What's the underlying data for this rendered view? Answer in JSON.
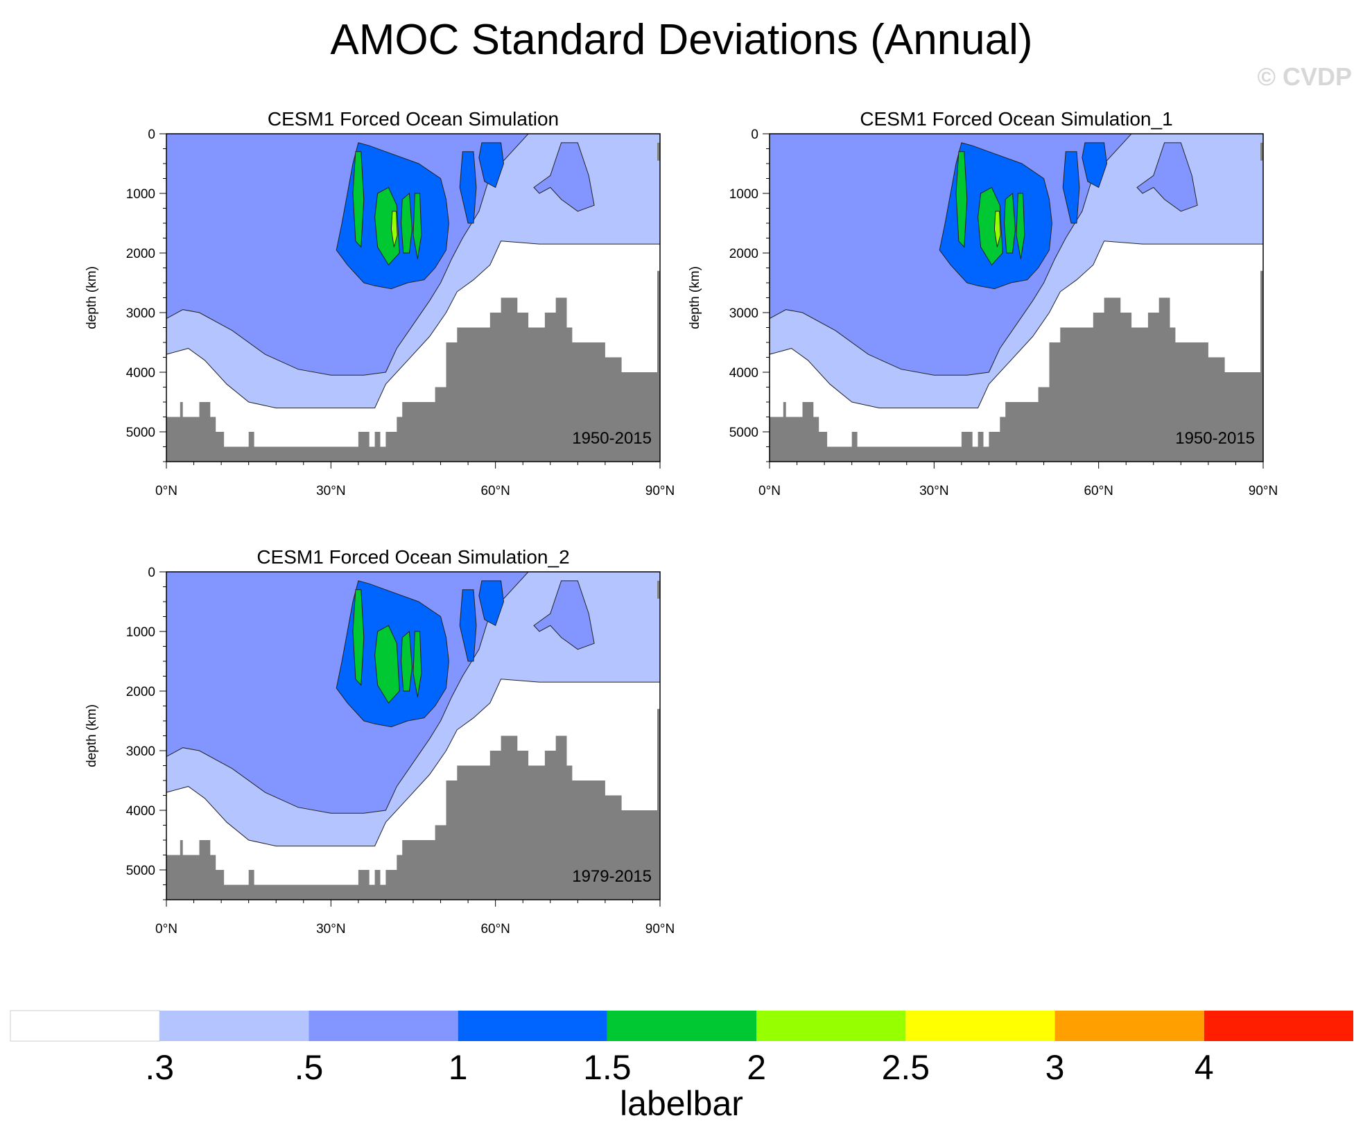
{
  "figure_title": "AMOC Standard Deviations (Annual)",
  "watermark": "© CVDP",
  "colors": {
    "levels": [
      "#ffffff",
      "#b4c4ff",
      "#8396ff",
      "#0064ff",
      "#00c832",
      "#96ff00",
      "#ffff00",
      "#ffa000",
      "#ff1e00"
    ],
    "land": "#808080",
    "contour_line": "#222222"
  },
  "chart_data": [
    {
      "type": "heatmap",
      "title": "CESM1 Forced Ocean Simulation",
      "period_label": "1950-2015",
      "ylabel": "depth (km)",
      "xlabel": "",
      "x_tick_labels": [
        "0°N",
        "30°N",
        "60°N",
        "90°N"
      ],
      "x_ticks": [
        0,
        30,
        60,
        90
      ],
      "y_tick_labels": [
        "0",
        "1000",
        "2000",
        "3000",
        "4000",
        "5000"
      ],
      "y_ticks": [
        0,
        1000,
        2000,
        3000,
        4000,
        5000
      ],
      "xlim": [
        0,
        90
      ],
      "ylim": [
        5500,
        0
      ],
      "max_std": 2.3
    },
    {
      "type": "heatmap",
      "title": "CESM1 Forced Ocean Simulation_1",
      "period_label": "1950-2015",
      "ylabel": "depth (km)",
      "xlabel": "",
      "x_tick_labels": [
        "0°N",
        "30°N",
        "60°N",
        "90°N"
      ],
      "x_ticks": [
        0,
        30,
        60,
        90
      ],
      "y_tick_labels": [
        "0",
        "1000",
        "2000",
        "3000",
        "4000",
        "5000"
      ],
      "y_ticks": [
        0,
        1000,
        2000,
        3000,
        4000,
        5000
      ],
      "xlim": [
        0,
        90
      ],
      "ylim": [
        5500,
        0
      ],
      "max_std": 2.3
    },
    {
      "type": "heatmap",
      "title": "CESM1 Forced Ocean Simulation_2",
      "period_label": "1979-2015",
      "ylabel": "depth (km)",
      "xlabel": "",
      "x_tick_labels": [
        "0°N",
        "30°N",
        "60°N",
        "90°N"
      ],
      "x_ticks": [
        0,
        30,
        60,
        90
      ],
      "y_tick_labels": [
        "0",
        "1000",
        "2000",
        "3000",
        "4000",
        "5000"
      ],
      "y_ticks": [
        0,
        1000,
        2000,
        3000,
        4000,
        5000
      ],
      "xlim": [
        0,
        90
      ],
      "ylim": [
        5500,
        0
      ],
      "max_std": 2.0
    }
  ],
  "labelbar": {
    "title": "labelbar",
    "labels": [
      ".3",
      ".5",
      "1",
      "1.5",
      "2",
      "2.5",
      "3",
      "4"
    ],
    "levels": [
      0.3,
      0.5,
      1,
      1.5,
      2,
      2.5,
      3,
      4
    ]
  }
}
